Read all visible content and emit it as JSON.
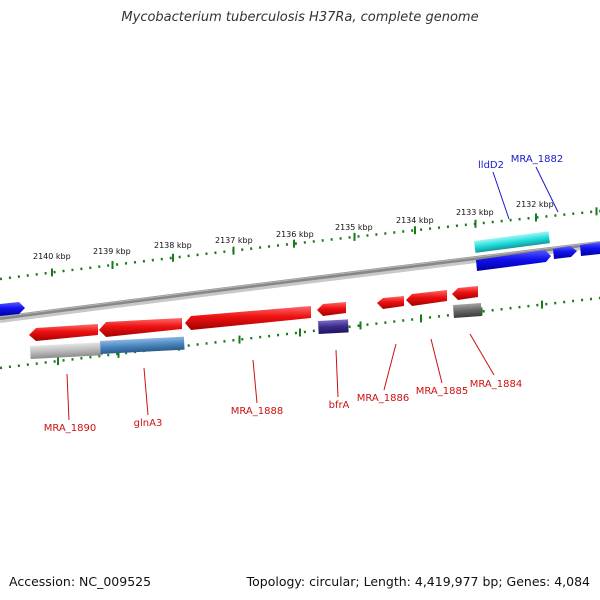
{
  "title": "Mycobacterium tuberculosis H37Ra, complete genome",
  "footer": {
    "accession": "Accession: NC_009525",
    "summary": "Topology: circular; Length: 4,419,977 bp; Genes: 4,084"
  },
  "kbp_ticks": [
    {
      "label": "2140 kbp",
      "position_kbp": 2140
    },
    {
      "label": "2139 kbp",
      "position_kbp": 2139
    },
    {
      "label": "2138 kbp",
      "position_kbp": 2138
    },
    {
      "label": "2137 kbp",
      "position_kbp": 2137
    },
    {
      "label": "2136 kbp",
      "position_kbp": 2136
    },
    {
      "label": "2135 kbp",
      "position_kbp": 2135
    },
    {
      "label": "2134 kbp",
      "position_kbp": 2134
    },
    {
      "label": "2133 kbp",
      "position_kbp": 2133
    },
    {
      "label": "2132 kbp",
      "position_kbp": 2132
    }
  ],
  "top_gene_labels": [
    {
      "text": "lldD2",
      "color": "#1a1acc"
    },
    {
      "text": "MRA_1882",
      "color": "#1a1acc"
    }
  ],
  "bottom_gene_labels": [
    {
      "text": "MRA_1890",
      "color": "#cc1111"
    },
    {
      "text": "glnA3",
      "color": "#cc1111"
    },
    {
      "text": "MRA_1888",
      "color": "#cc1111"
    },
    {
      "text": "bfrA",
      "color": "#cc1111"
    },
    {
      "text": "MRA_1886",
      "color": "#cc1111"
    },
    {
      "text": "MRA_1885",
      "color": "#cc1111"
    },
    {
      "text": "MRA_1884",
      "color": "#cc1111"
    }
  ],
  "colors": {
    "reverse_gene": "#ee1111",
    "forward_gene": "#1111ee",
    "backbone": "#888888",
    "tick_marks": "#1a7a1a",
    "cyan_feature": "#22dddd",
    "steelblue_feature": "#4a86c0",
    "navy_feature": "#3a2a88",
    "gray_feature": "#666666",
    "light_gray_feature": "#bbbbbb"
  }
}
